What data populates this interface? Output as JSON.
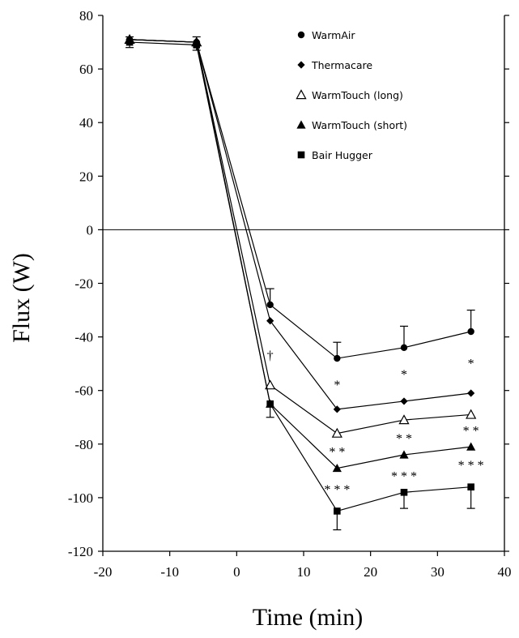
{
  "chart_data": {
    "type": "line",
    "xlabel": "Time (min)",
    "ylabel": "Flux (W)",
    "xlim": [
      -20,
      40
    ],
    "ylim": [
      -120,
      80
    ],
    "xticks": [
      "-20",
      "-10",
      "0",
      "10",
      "20",
      "30",
      "40"
    ],
    "yticks": [
      "80",
      "60",
      "40",
      "20",
      "0",
      "-20",
      "-40",
      "-60",
      "-80",
      "-100",
      "-120"
    ],
    "zero_line": true,
    "legend_position": "top-right",
    "series": [
      {
        "name": "WarmAir",
        "marker": "circle",
        "x": [
          -16,
          -6,
          5,
          15,
          25,
          35
        ],
        "y": [
          71,
          70,
          -28,
          -48,
          -44,
          -38
        ],
        "err_up": [
          1,
          2,
          6,
          6,
          8,
          8
        ],
        "err_down": [
          0,
          0,
          0,
          0,
          0,
          0
        ]
      },
      {
        "name": "Thermacare",
        "marker": "diamond",
        "x": [
          -16,
          -6,
          5,
          15,
          25,
          35
        ],
        "y": [
          71,
          70,
          -34,
          -67,
          -64,
          -61
        ],
        "err_up": [
          0,
          0,
          0,
          0,
          0,
          0
        ],
        "err_down": [
          0,
          0,
          0,
          0,
          0,
          0
        ]
      },
      {
        "name": "WarmTouch  (long)",
        "marker": "triangle-open",
        "x": [
          -16,
          -6,
          5,
          15,
          25,
          35
        ],
        "y": [
          71,
          70,
          -58,
          -76,
          -71,
          -69
        ],
        "err_up": [
          0,
          0,
          0,
          0,
          0,
          0
        ],
        "err_down": [
          0,
          0,
          0,
          0,
          0,
          0
        ]
      },
      {
        "name": "WarmTouch  (short)",
        "marker": "triangle",
        "x": [
          -16,
          -6,
          5,
          15,
          25,
          35
        ],
        "y": [
          71,
          70,
          -65,
          -89,
          -84,
          -81
        ],
        "err_up": [
          0,
          0,
          0,
          0,
          0,
          0
        ],
        "err_down": [
          0,
          0,
          0,
          0,
          0,
          0
        ]
      },
      {
        "name": "Bair  Hugger",
        "marker": "square",
        "x": [
          -16,
          -6,
          5,
          15,
          25,
          35
        ],
        "y": [
          70,
          69,
          -65,
          -105,
          -98,
          -96
        ],
        "err_up": [
          0,
          0,
          0,
          0,
          0,
          0
        ],
        "err_down": [
          2,
          2,
          5,
          7,
          6,
          8
        ]
      }
    ],
    "annotations": [
      {
        "text": "†",
        "x": 5,
        "y": -47
      },
      {
        "text": "*",
        "x": 15,
        "y": -58
      },
      {
        "text": "*",
        "x": 25,
        "y": -54
      },
      {
        "text": "*",
        "x": 35,
        "y": -50
      },
      {
        "text": "* *",
        "x": 15,
        "y": -83
      },
      {
        "text": "* *",
        "x": 25,
        "y": -78
      },
      {
        "text": "* *",
        "x": 35,
        "y": -75
      },
      {
        "text": "* * *",
        "x": 25,
        "y": -92
      },
      {
        "text": "* * *",
        "x": 35,
        "y": -88
      },
      {
        "text": "* * *",
        "x": 15,
        "y": -97
      }
    ]
  }
}
